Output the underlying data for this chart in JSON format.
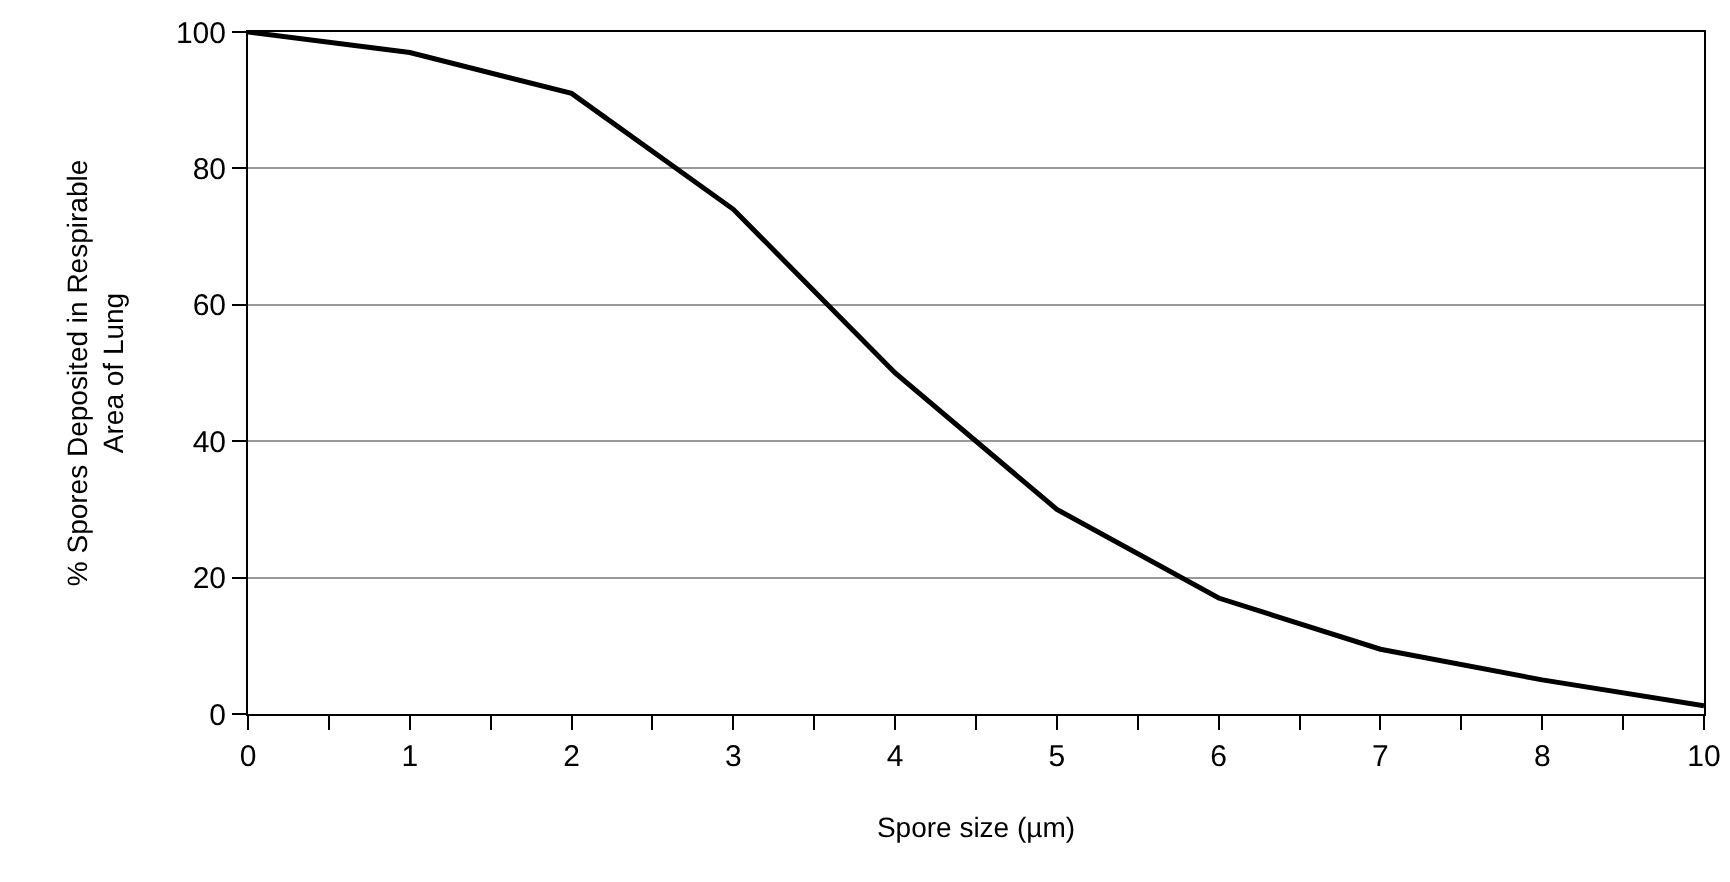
{
  "chart_data": {
    "type": "line",
    "xlabel": "Spore size (µm)",
    "ylabel": "% Spores Deposited in Respirable\nArea of Lung",
    "categories": [
      "0",
      "1",
      "2",
      "3",
      "4",
      "5",
      "6",
      "7",
      "8",
      "10"
    ],
    "series": [
      {
        "color": "#000000",
        "values": [
          100,
          97,
          91,
          74,
          50,
          30,
          17,
          9.5,
          5,
          1.2
        ]
      }
    ],
    "ylim": [
      0,
      100
    ],
    "yticks": [
      0,
      20,
      40,
      60,
      80,
      100
    ],
    "grid": "y",
    "marker": "none",
    "line_style": "solid"
  }
}
